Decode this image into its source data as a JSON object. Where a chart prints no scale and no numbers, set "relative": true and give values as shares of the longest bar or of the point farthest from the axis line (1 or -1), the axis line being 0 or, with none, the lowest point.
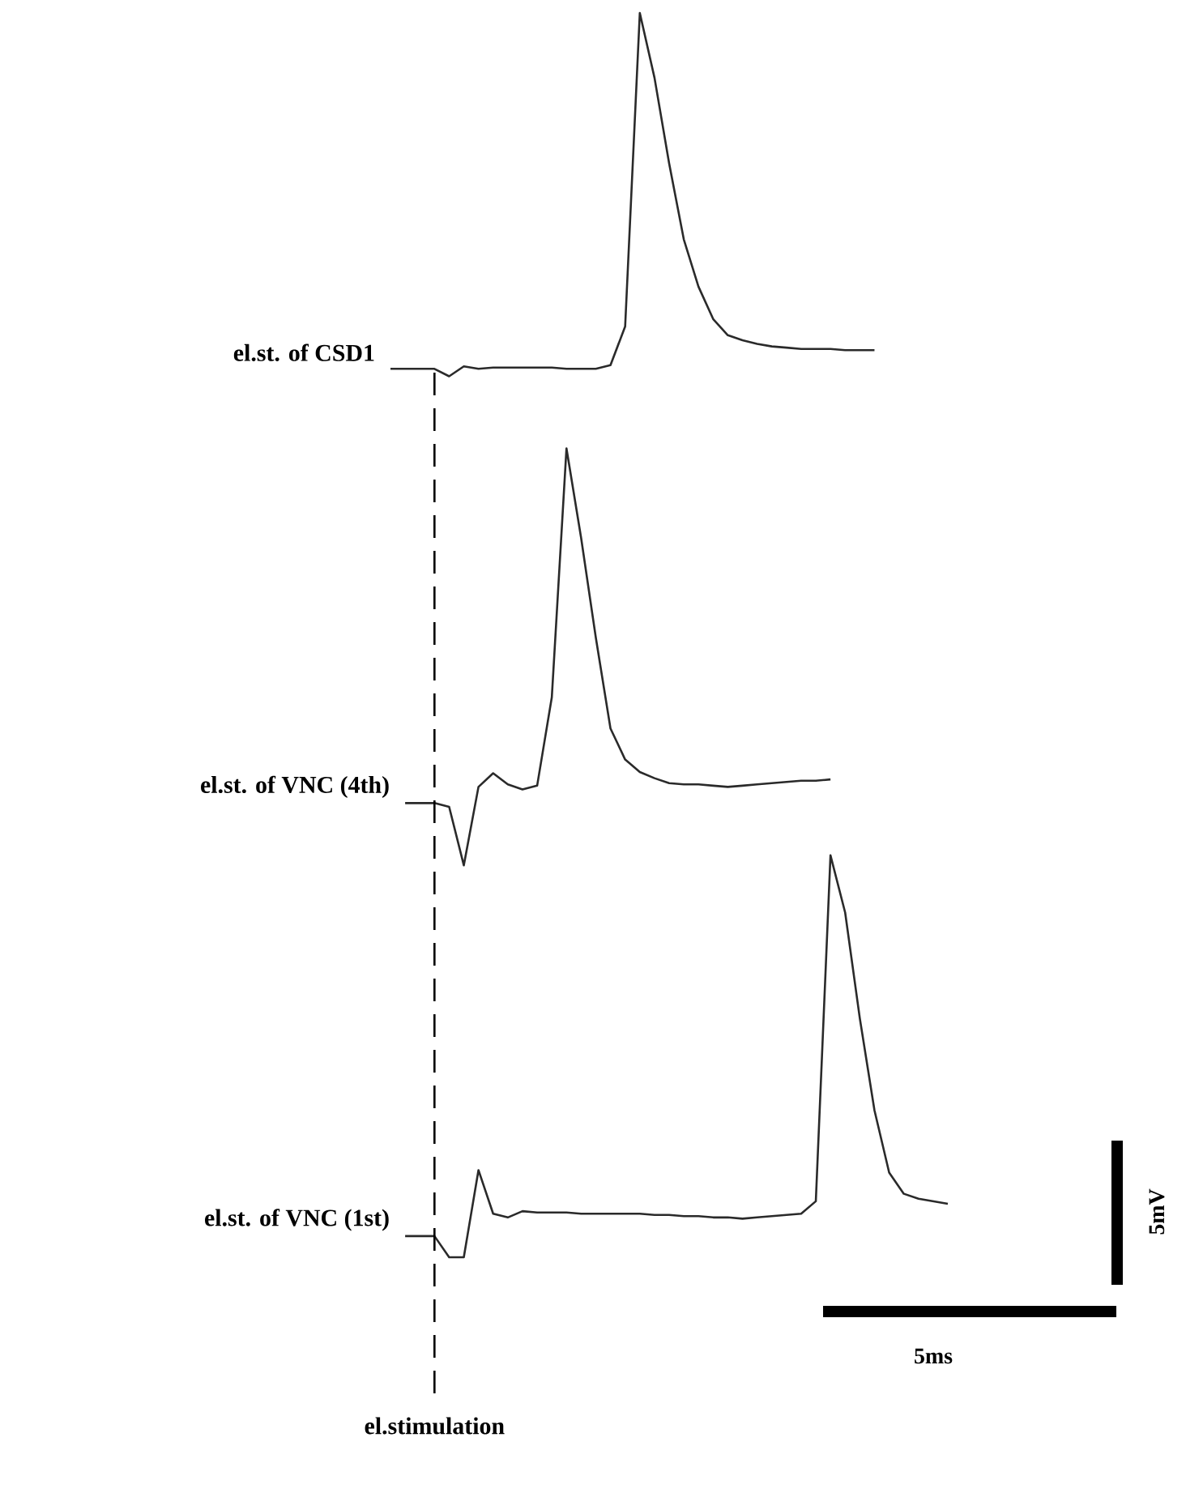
{
  "chart_data": {
    "type": "line",
    "relative": true,
    "categories": [
      null,
      null,
      null,
      null,
      null,
      null,
      null,
      null,
      null,
      null,
      null,
      null,
      null,
      null,
      null,
      null,
      null,
      null,
      null,
      null,
      null,
      null,
      null,
      null,
      null,
      null,
      null,
      null,
      null,
      null,
      null,
      null,
      null,
      null,
      null,
      null,
      null,
      null,
      null
    ],
    "series": [
      {
        "name": "el.st. of CSD1",
        "color": "#2a2a2a",
        "values": [
          0.714,
          0.714,
          0.714,
          0.714,
          0.708,
          0.716,
          0.714,
          0.715,
          0.715,
          0.715,
          0.715,
          0.715,
          0.714,
          0.714,
          0.714,
          0.717,
          0.748,
          1.0,
          0.948,
          0.879,
          0.818,
          0.78,
          0.754,
          0.741,
          0.737,
          0.734,
          0.732,
          0.731,
          0.73,
          0.73,
          0.73,
          0.729,
          0.729,
          0.729,
          null,
          null,
          null,
          null,
          null
        ]
      },
      {
        "name": "el.st. of VNC (4th)",
        "color": "#2a2a2a",
        "values": [
          null,
          0.365,
          0.365,
          0.365,
          0.362,
          0.315,
          0.378,
          0.389,
          0.38,
          0.376,
          0.379,
          0.45,
          0.65,
          0.578,
          0.498,
          0.425,
          0.4,
          0.39,
          0.385,
          0.381,
          0.38,
          0.38,
          0.379,
          0.378,
          0.379,
          0.38,
          0.381,
          0.382,
          0.383,
          0.383,
          0.384,
          null,
          null,
          null,
          null,
          null,
          null,
          null,
          null
        ]
      },
      {
        "name": "el.st. of VNC (1st)",
        "color": "#2a2a2a",
        "values": [
          null,
          0.017,
          0.017,
          0.017,
          0.0,
          0.0,
          0.07,
          0.035,
          0.032,
          0.037,
          0.036,
          0.036,
          0.036,
          0.035,
          0.035,
          0.035,
          0.035,
          0.035,
          0.034,
          0.034,
          0.033,
          0.033,
          0.032,
          0.032,
          0.031,
          0.032,
          0.033,
          0.034,
          0.035,
          0.045,
          0.323,
          0.277,
          0.192,
          0.118,
          0.068,
          0.051,
          0.047,
          0.045,
          0.043
        ]
      }
    ],
    "annotations": [
      "el.stimulation",
      "5ms",
      "5mV"
    ]
  }
}
